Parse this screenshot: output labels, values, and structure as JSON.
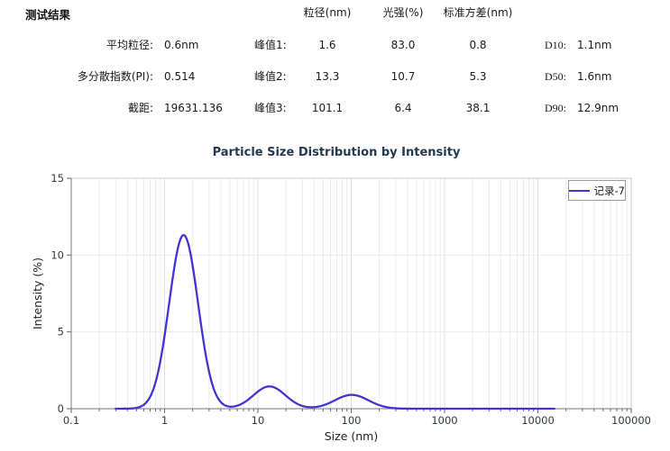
{
  "results": {
    "title": "测试结果",
    "headers": {
      "size": "粒径(nm)",
      "intensity": "光强(%)",
      "stddev": "标准方差(nm)"
    },
    "rows": [
      {
        "label": "平均粒径:",
        "value": "0.6nm",
        "peak_label": "峰值1:",
        "size": "1.6",
        "intensity": "83.0",
        "stddev": "0.8",
        "d_label": "D10:",
        "d_value": "1.1nm"
      },
      {
        "label": "多分散指数(PI):",
        "value": "0.514",
        "peak_label": "峰值2:",
        "size": "13.3",
        "intensity": "10.7",
        "stddev": "5.3",
        "d_label": "D50:",
        "d_value": "1.6nm"
      },
      {
        "label": "截距:",
        "value": "19631.136",
        "peak_label": "峰值3:",
        "size": "101.1",
        "intensity": "6.4",
        "stddev": "38.1",
        "d_label": "D90:",
        "d_value": "12.9nm"
      }
    ]
  },
  "chart": {
    "title": "Particle Size Distribution by Intensity",
    "xlabel": "Size (nm)",
    "ylabel": "Intensity (%)",
    "legend_label": "记录-7"
  },
  "chart_data": {
    "type": "line",
    "title": "Particle Size Distribution by Intensity",
    "xlabel": "Size (nm)",
    "ylabel": "Intensity (%)",
    "x_scale": "log",
    "x_range": [
      0.1,
      100000
    ],
    "y_range": [
      0,
      15
    ],
    "x_tick_values": [
      0.1,
      1,
      10,
      100,
      1000,
      10000,
      100000
    ],
    "x_tick_labels": [
      "0.1",
      "1",
      "10",
      "100",
      "1000",
      "10000",
      "100000"
    ],
    "y_tick_values": [
      0,
      5,
      10,
      15
    ],
    "y_tick_labels": [
      "0",
      "5",
      "10",
      "15"
    ],
    "y_gridlines": [
      5,
      10
    ],
    "grid": true,
    "legend": {
      "position": "top-right",
      "entries": [
        "记录-7"
      ]
    },
    "series": [
      {
        "name": "记录-7",
        "color": "#3f36d0",
        "x_start": 0.3,
        "x_end": 15000,
        "peaks": [
          {
            "center_nm": 1.6,
            "height_pct": 11.3,
            "sigma_log10": 0.155
          },
          {
            "center_nm": 13.3,
            "height_pct": 1.45,
            "sigma_log10": 0.17
          },
          {
            "center_nm": 101.1,
            "height_pct": 0.9,
            "sigma_log10": 0.18
          }
        ]
      }
    ],
    "colors": {
      "curve": "#3f36d0",
      "grid_minor": "#ececec",
      "grid_major": "#dcdcdc",
      "axis": "#8f8f8f",
      "border": "#c9c9c9",
      "tick": "#666666"
    }
  }
}
